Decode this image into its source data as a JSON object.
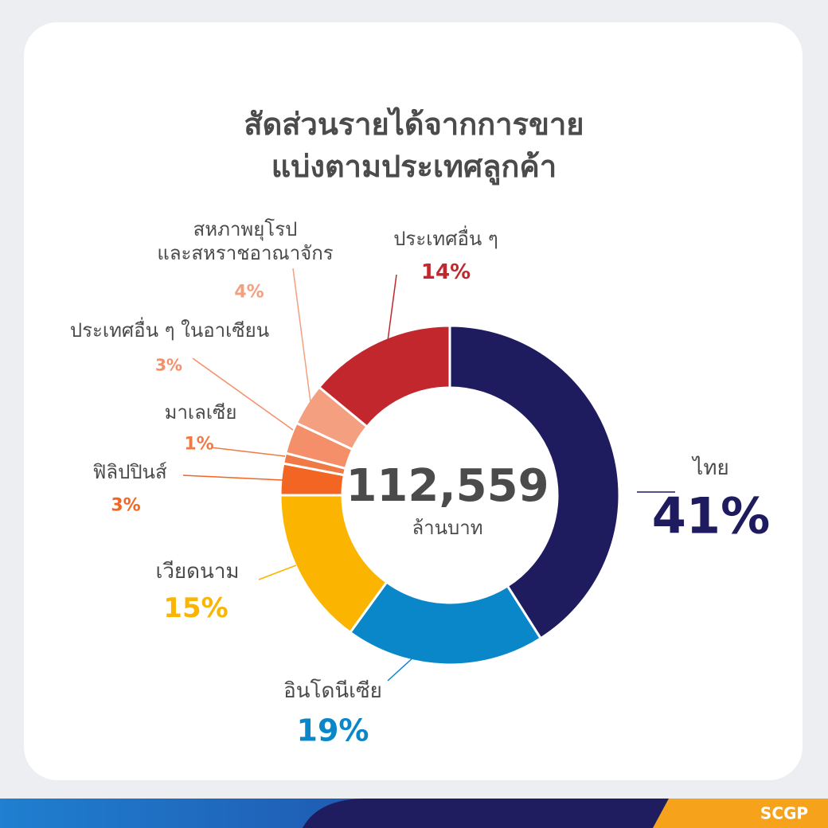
{
  "chart_data": {
    "type": "pie",
    "title": "สัดส่วนรายได้จากการขาย\nแบ่งตามประเทศลูกค้า",
    "center_text": "112,559",
    "center_unit": "ล้านบาท",
    "categories": [
      "ไทย",
      "อินโดนีเซีย",
      "เวียดนาม",
      "ฟิลิปปินส์",
      "มาเลเซีย",
      "ประเทศอื่น ๆ ในอาเซียน",
      "สหภาพยุโรป\nและสหราชอาณาจักร",
      "ประเทศอื่น ๆ"
    ],
    "values": [
      41,
      19,
      15,
      3,
      1,
      3,
      4,
      14
    ],
    "value_labels": [
      "41%",
      "19%",
      "15%",
      "3%",
      "1%",
      "3%",
      "4%",
      "14%"
    ],
    "colors": [
      "#1f1b5f",
      "#0a87c9",
      "#fbb400",
      "#f26522",
      "#f07a45",
      "#f48f6a",
      "#f4a080",
      "#c1272d"
    ]
  },
  "footer": {
    "brand": "SCGP"
  }
}
